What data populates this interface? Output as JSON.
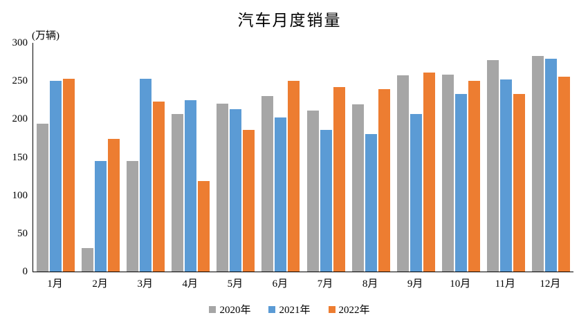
{
  "title": "汽车月度销量",
  "unit_label": "(万辆)",
  "chart_data": {
    "type": "bar",
    "categories": [
      "1月",
      "2月",
      "3月",
      "4月",
      "5月",
      "6月",
      "7月",
      "8月",
      "9月",
      "10月",
      "11月",
      "12月"
    ],
    "series": [
      {
        "name": "2020年",
        "color": "#A6A6A6",
        "values": [
          194,
          31,
          145,
          207,
          220,
          230,
          211,
          219,
          257,
          258,
          277,
          283
        ]
      },
      {
        "name": "2021年",
        "color": "#5B9BD5",
        "values": [
          250,
          145,
          253,
          225,
          213,
          202,
          186,
          180,
          207,
          233,
          252,
          279
        ]
      },
      {
        "name": "2022年",
        "color": "#ED7D31",
        "values": [
          253,
          174,
          223,
          119,
          186,
          250,
          242,
          239,
          261,
          250,
          233,
          256
        ]
      }
    ],
    "title": "汽车月度销量",
    "xlabel": "",
    "ylabel": "(万辆)",
    "ylim": [
      0,
      300
    ],
    "yticks": [
      0,
      50,
      100,
      150,
      200,
      250,
      300
    ],
    "grid": false,
    "legend_position": "bottom",
    "axis_color": "#000000",
    "background_color": "#FFFFFF"
  }
}
